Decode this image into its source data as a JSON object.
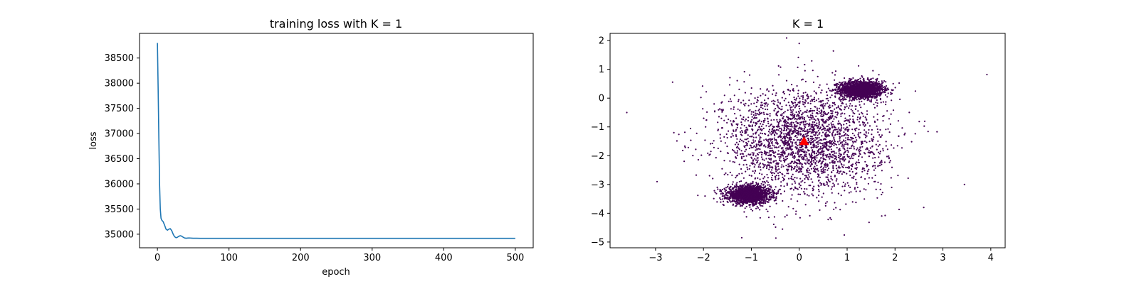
{
  "chart_data": [
    {
      "type": "line",
      "title": "training loss with K = 1",
      "xlabel": "epoch",
      "ylabel": "loss",
      "xlim": [
        -25,
        525
      ],
      "ylim": [
        34730,
        38990
      ],
      "xticks": [
        0,
        100,
        200,
        300,
        400,
        500
      ],
      "yticks": [
        35000,
        35500,
        36000,
        36500,
        37000,
        37500,
        38000,
        38500
      ],
      "line_color": "#1f77b4",
      "grid": false,
      "series": [
        {
          "x": [
            0,
            1,
            2,
            3,
            4,
            5,
            6,
            8,
            10,
            12,
            14,
            16,
            18,
            20,
            22,
            24,
            26,
            28,
            30,
            32,
            34,
            36,
            38,
            40,
            42,
            44,
            46,
            48,
            50,
            55,
            60,
            70,
            80,
            100,
            150,
            200,
            300,
            400,
            500
          ],
          "values": [
            38800,
            37900,
            36900,
            36000,
            35500,
            35320,
            35280,
            35250,
            35180,
            35100,
            35080,
            35100,
            35110,
            35070,
            35000,
            34950,
            34930,
            34940,
            34960,
            34970,
            34960,
            34940,
            34925,
            34920,
            34923,
            34925,
            34924,
            34922,
            34920,
            34920,
            34918,
            34918,
            34918,
            34918,
            34918,
            34918,
            34918,
            34918,
            34918
          ]
        }
      ]
    },
    {
      "type": "scatter",
      "title": "K = 1",
      "xlabel": "",
      "ylabel": "",
      "xlim": [
        -3.95,
        4.3
      ],
      "ylim": [
        -5.2,
        2.25
      ],
      "xticks": [
        -3,
        -2,
        -1,
        0,
        1,
        2,
        3,
        4
      ],
      "yticks": [
        -5,
        -4,
        -3,
        -2,
        -1,
        0,
        1,
        2
      ],
      "point_color": "#440154",
      "centroid_color": "#ff0000",
      "grid": false,
      "clusters": [
        {
          "center": [
            1.3,
            0.3
          ],
          "spread": [
            0.22,
            0.15
          ],
          "count": 1800
        },
        {
          "center": [
            -1.05,
            -3.35
          ],
          "spread": [
            0.22,
            0.15
          ],
          "count": 1800
        },
        {
          "center": [
            0.1,
            -1.5
          ],
          "spread": [
            0.85,
            0.95
          ],
          "count": 2600
        }
      ],
      "outliers": [
        [
          -3.6,
          -0.5
        ],
        [
          3.92,
          0.82
        ],
        [
          3.45,
          -3.0
        ],
        [
          0.0,
          1.9
        ],
        [
          -1.2,
          -4.85
        ],
        [
          -0.35,
          -4.55
        ],
        [
          2.6,
          -3.8
        ]
      ],
      "centroid": [
        0.1,
        -1.5
      ]
    }
  ]
}
